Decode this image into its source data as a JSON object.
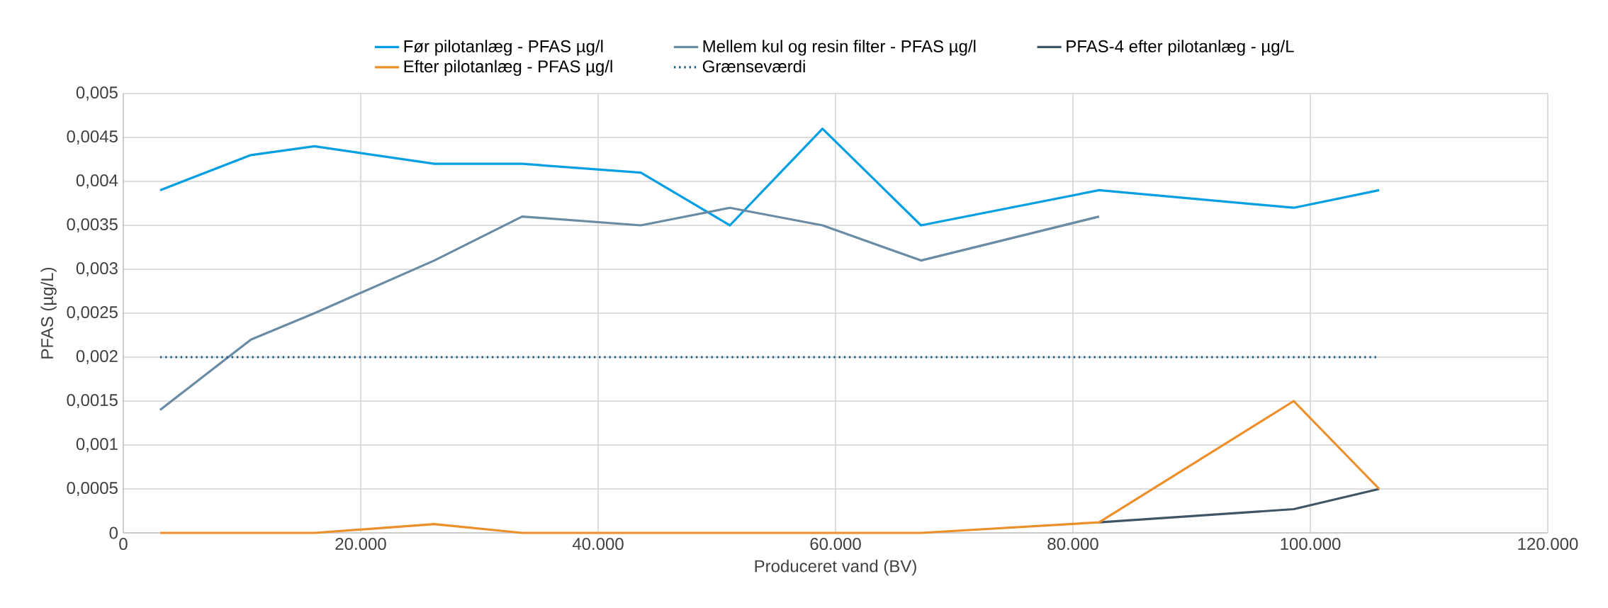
{
  "chart_data": {
    "type": "line",
    "xlabel": "Produceret vand (BV)",
    "ylabel": "PFAS (µg/L)",
    "x": [
      3100,
      10750,
      16100,
      26200,
      33600,
      43600,
      51100,
      58900,
      67200,
      82200,
      98600,
      105800
    ],
    "series": [
      {
        "name": "Før pilotanlæg - PFAS µg/l",
        "color": "#009fe3",
        "values": [
          0.0039,
          0.0043,
          0.0044,
          0.0042,
          0.0042,
          0.0041,
          0.0035,
          0.0046,
          0.0035,
          0.0039,
          0.0037,
          0.0039
        ]
      },
      {
        "name": "Mellem kul og resin filter - PFAS µg/l",
        "color": "#6a8ba4",
        "values": [
          0.0014,
          0.0022,
          0.0025,
          0.0031,
          0.0036,
          0.0035,
          0.0037,
          0.0035,
          0.0031,
          0.0036,
          null,
          null
        ]
      },
      {
        "name": "PFAS-4 efter pilotanlæg - µg/L",
        "color": "#3e5566",
        "values": [
          null,
          null,
          null,
          null,
          null,
          null,
          null,
          null,
          null,
          0.00012,
          0.00027,
          0.0005
        ]
      },
      {
        "name": "Efter pilotanlæg - PFAS µg/l",
        "color": "#ec8f2a",
        "values": [
          0,
          0,
          0,
          0.0001,
          0,
          0,
          0,
          0,
          0,
          0.00012,
          0.0015,
          0.0005
        ]
      },
      {
        "name": "Grænseværdi",
        "color": "#1b5e86",
        "line_style": "dotted",
        "values": [
          0.002,
          0.002,
          0.002,
          0.002,
          0.002,
          0.002,
          0.002,
          0.002,
          0.002,
          0.002,
          0.002,
          0.002
        ]
      }
    ],
    "xlim": [
      0,
      120000
    ],
    "xticks": [
      0,
      {
        "value": 20000,
        "label": "20.000"
      },
      {
        "value": 40000,
        "label": "40.000"
      },
      {
        "value": 60000,
        "label": "60.000"
      },
      {
        "value": 80000,
        "label": "80.000"
      },
      {
        "value": 100000,
        "label": "100.000"
      },
      {
        "value": 120000,
        "label": "120.000"
      }
    ],
    "ylim": [
      0,
      0.005
    ],
    "yticks": [
      0,
      {
        "value": 0.0005,
        "label": "0,0005"
      },
      {
        "value": 0.001,
        "label": "0,001"
      },
      {
        "value": 0.0015,
        "label": "0,0015"
      },
      {
        "value": 0.002,
        "label": "0,002"
      },
      {
        "value": 0.0025,
        "label": "0,0025"
      },
      {
        "value": 0.003,
        "label": "0,003"
      },
      {
        "value": 0.0035,
        "label": "0,0035"
      },
      {
        "value": 0.004,
        "label": "0,004"
      },
      {
        "value": 0.0045,
        "label": "0,0045"
      },
      {
        "value": 0.005,
        "label": "0,005"
      }
    ],
    "grid": true,
    "legend": "top"
  }
}
